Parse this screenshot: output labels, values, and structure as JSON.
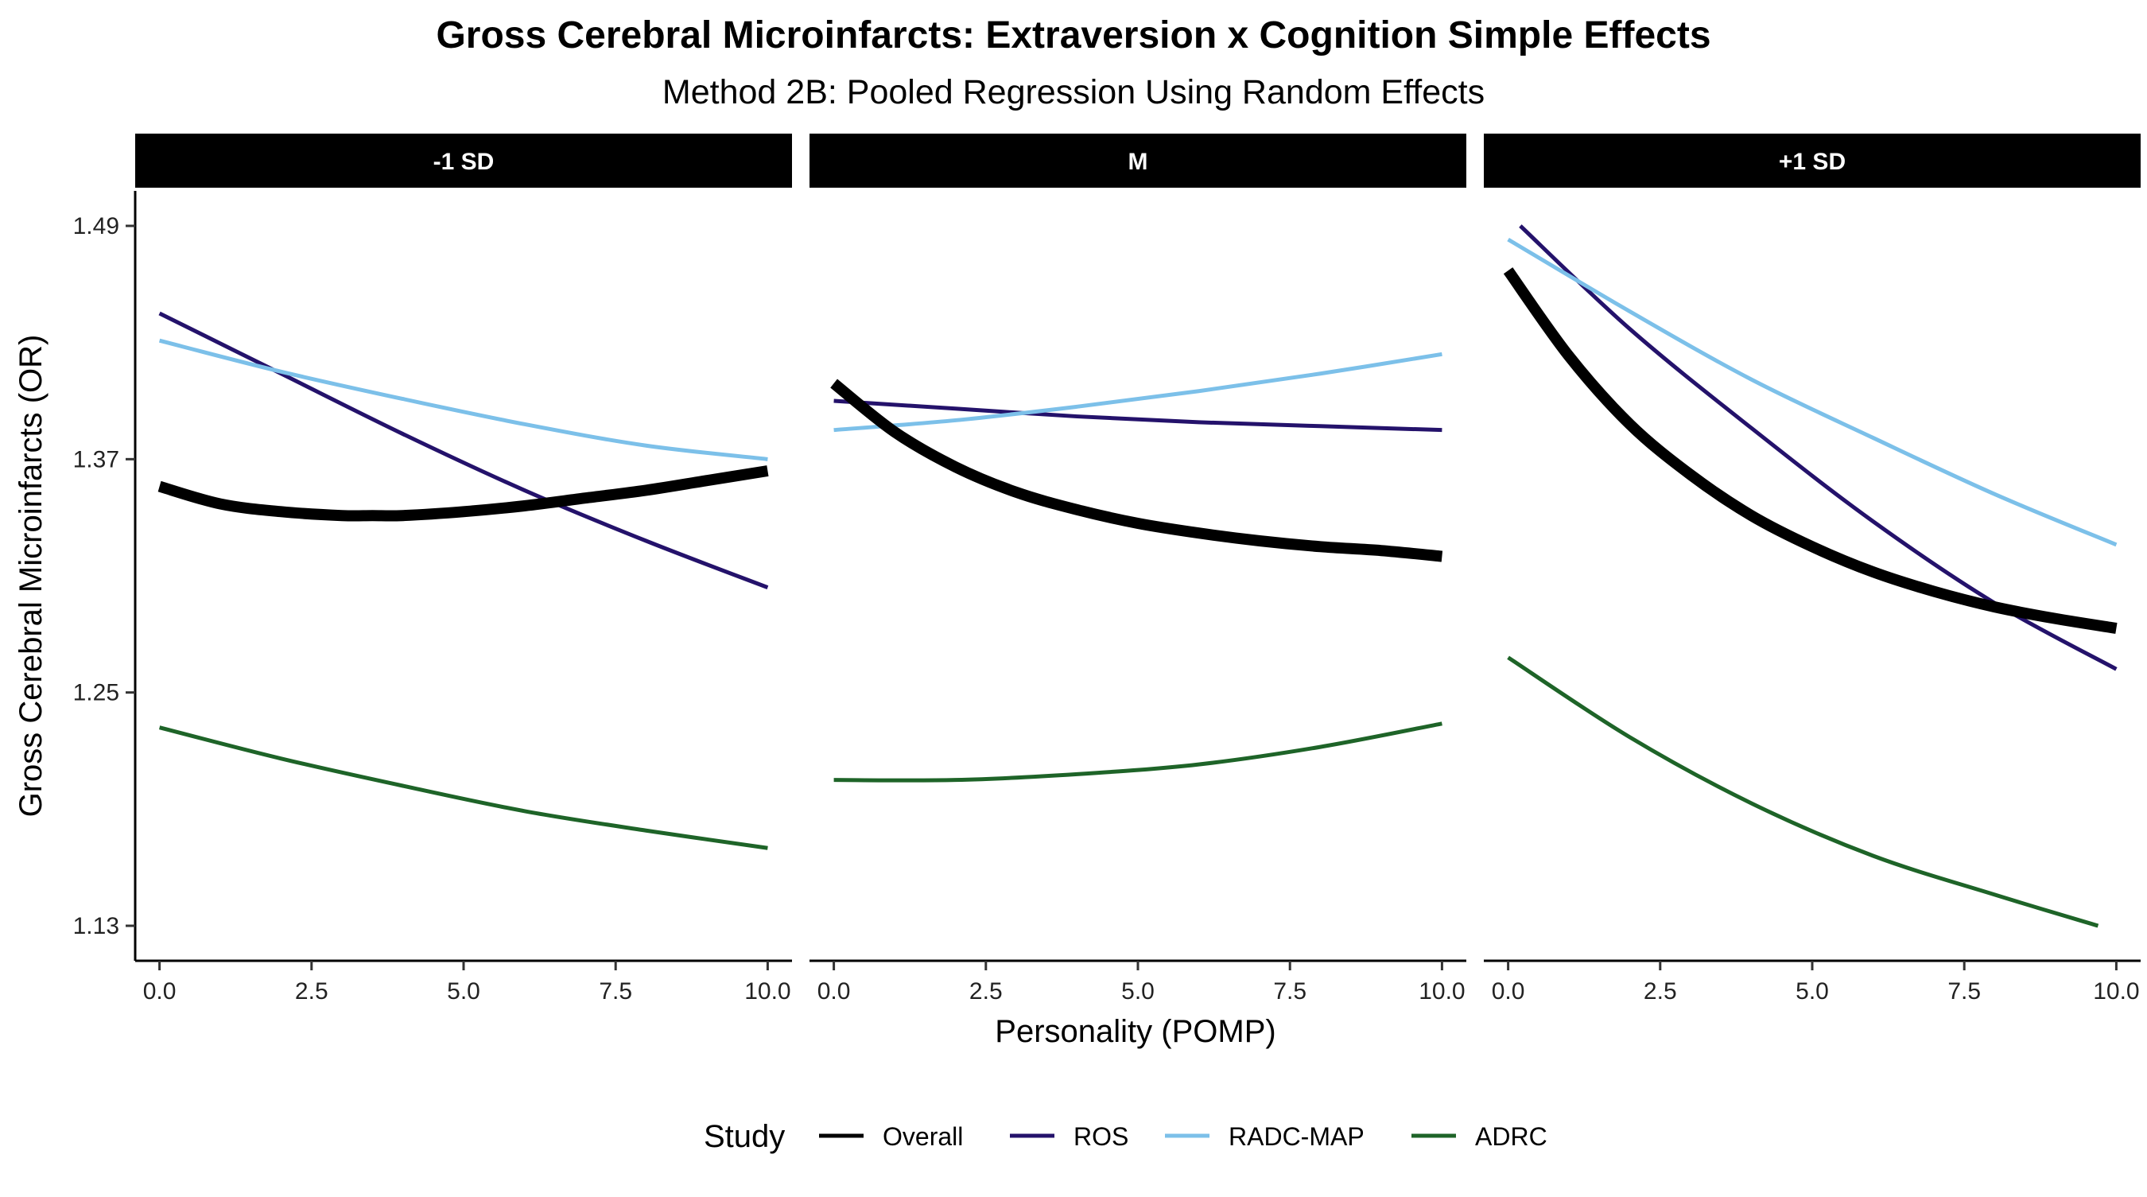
{
  "chart_data": {
    "type": "line",
    "title": "Gross Cerebral Microinfarcts: Extraversion x Cognition Simple Effects",
    "subtitle": "Method 2B: Pooled Regression Using Random Effects",
    "xlabel": "Personality (POMP)",
    "ylabel": "Gross Cerebral Microinfarcts (OR)",
    "xlim": [
      -0.4,
      10.4
    ],
    "ylim": [
      1.112,
      1.508
    ],
    "x_ticks": [
      0,
      2.5,
      5,
      7.5,
      10
    ],
    "x_tick_labels": [
      "0.0",
      "2.5",
      "5.0",
      "7.5",
      "10.0"
    ],
    "y_ticks": [
      1.13,
      1.25,
      1.37,
      1.49
    ],
    "y_tick_labels": [
      "1.13",
      "1.25",
      "1.37",
      "1.49"
    ],
    "grid": false,
    "legend": {
      "title": "Study",
      "position": "bottom",
      "entries": [
        "Overall",
        "ROS",
        "RADC-MAP",
        "ADRC"
      ]
    },
    "series_colors": {
      "Overall": "#000000",
      "ROS": "#24126b",
      "RADC-MAP": "#7cc0e9",
      "ADRC": "#1e6428"
    },
    "panels": [
      {
        "label": "-1 SD",
        "series": [
          {
            "name": "Overall",
            "x": [
              0,
              1,
              2,
              3,
              3.5,
              4,
              5,
              6,
              7,
              8,
              9,
              10
            ],
            "y": [
              1.356,
              1.347,
              1.343,
              1.341,
              1.341,
              1.341,
              1.343,
              1.346,
              1.35,
              1.354,
              1.359,
              1.364
            ]
          },
          {
            "name": "ROS",
            "x": [
              0,
              2,
              4,
              6,
              8,
              10
            ],
            "y": [
              1.445,
              1.414,
              1.383,
              1.354,
              1.328,
              1.304
            ]
          },
          {
            "name": "RADC-MAP",
            "x": [
              0,
              2,
              4,
              6,
              8,
              10
            ],
            "y": [
              1.431,
              1.415,
              1.401,
              1.388,
              1.377,
              1.37
            ]
          },
          {
            "name": "ADRC",
            "x": [
              0,
              2,
              4,
              6,
              8,
              10
            ],
            "y": [
              1.232,
              1.216,
              1.202,
              1.189,
              1.179,
              1.17
            ]
          }
        ]
      },
      {
        "label": "M",
        "series": [
          {
            "name": "Overall",
            "x": [
              0,
              1,
              2,
              3,
              4,
              5,
              6,
              7,
              8,
              9,
              10
            ],
            "y": [
              1.409,
              1.384,
              1.366,
              1.353,
              1.344,
              1.337,
              1.332,
              1.328,
              1.325,
              1.323,
              1.32
            ]
          },
          {
            "name": "ROS",
            "x": [
              0,
              2,
              4,
              6,
              8,
              10
            ],
            "y": [
              1.4,
              1.396,
              1.392,
              1.389,
              1.387,
              1.385
            ]
          },
          {
            "name": "RADC-MAP",
            "x": [
              0,
              2,
              4,
              6,
              8,
              10
            ],
            "y": [
              1.385,
              1.39,
              1.397,
              1.405,
              1.414,
              1.424
            ]
          },
          {
            "name": "ADRC",
            "x": [
              0,
              2,
              4,
              6,
              8,
              10
            ],
            "y": [
              1.205,
              1.205,
              1.208,
              1.213,
              1.222,
              1.234
            ]
          }
        ]
      },
      {
        "label": "+1 SD",
        "series": [
          {
            "name": "Overall",
            "x": [
              0,
              1,
              2,
              3,
              4,
              5,
              6,
              7,
              8,
              9,
              10
            ],
            "y": [
              1.467,
              1.423,
              1.388,
              1.362,
              1.341,
              1.325,
              1.312,
              1.302,
              1.294,
              1.288,
              1.283
            ]
          },
          {
            "name": "ROS",
            "x": [
              0.2,
              2,
              4,
              6,
              8,
              10
            ],
            "y": [
              1.49,
              1.437,
              1.386,
              1.338,
              1.296,
              1.262
            ]
          },
          {
            "name": "RADC-MAP",
            "x": [
              0,
              2,
              4,
              6,
              8,
              10
            ],
            "y": [
              1.483,
              1.446,
              1.411,
              1.381,
              1.352,
              1.326
            ]
          },
          {
            "name": "ADRC",
            "x": [
              0,
              2,
              4,
              6,
              8,
              9.7
            ],
            "y": [
              1.268,
              1.227,
              1.193,
              1.166,
              1.146,
              1.13
            ]
          }
        ]
      }
    ]
  }
}
